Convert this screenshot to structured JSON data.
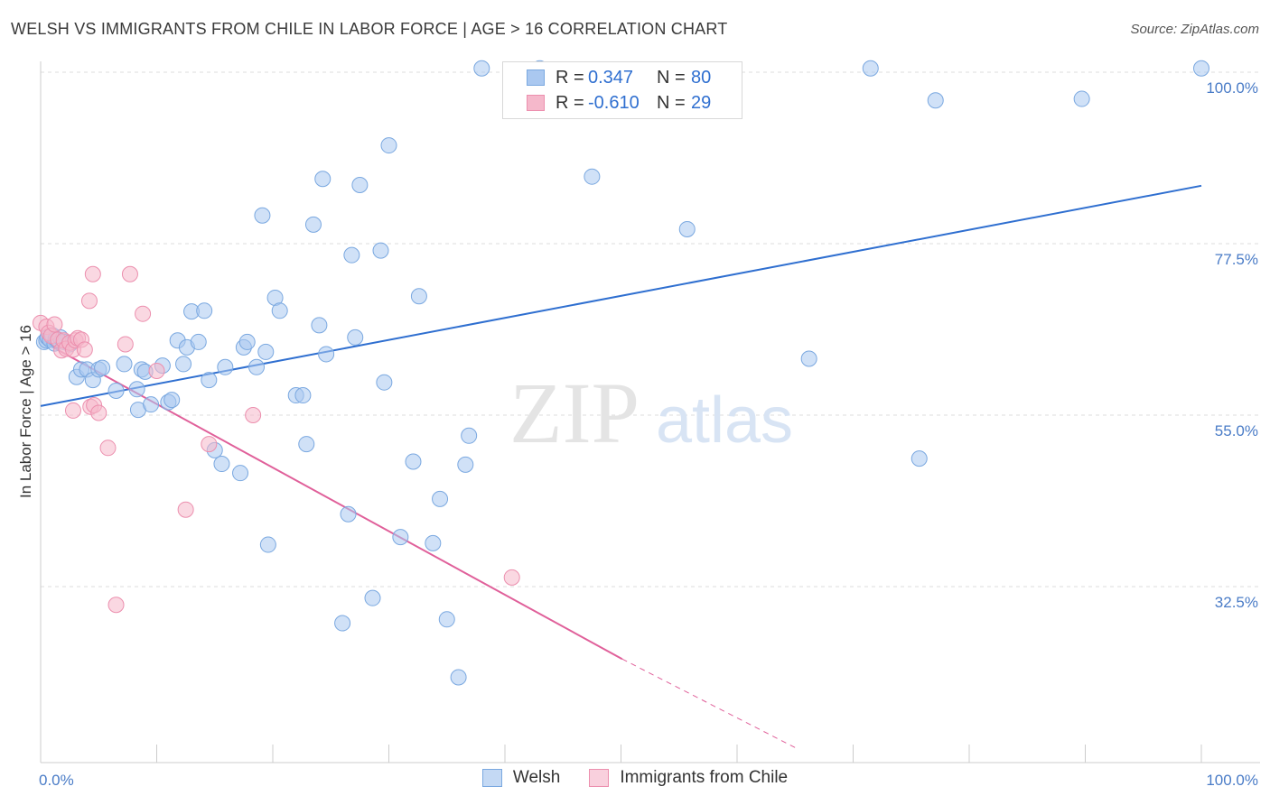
{
  "header": {
    "title": "WELSH VS IMMIGRANTS FROM CHILE IN LABOR FORCE | AGE > 16 CORRELATION CHART",
    "source": "Source: ZipAtlas.com"
  },
  "watermark": {
    "zip": "ZIP",
    "atlas": "atlas"
  },
  "legend_top": {
    "rows": [
      {
        "r_label": "R =",
        "r_value": "0.347",
        "n_label": "N =",
        "n_value": "80",
        "color": "#aac8f0"
      },
      {
        "r_label": "R =",
        "r_value": "-0.610",
        "n_label": "N =",
        "n_value": "29",
        "color": "#f5b8cb"
      }
    ]
  },
  "legend_bottom": [
    {
      "label": "Welsh",
      "color": "#aac8f0"
    },
    {
      "label": "Immigrants from Chile",
      "color": "#f5b8cb"
    }
  ],
  "chart_data": {
    "type": "scatter",
    "title": "WELSH VS IMMIGRANTS FROM CHILE IN LABOR FORCE | AGE > 16 CORRELATION CHART",
    "xlabel": "",
    "ylabel": "In Labor Force | Age > 16",
    "xlim": [
      0,
      100
    ],
    "ylim": [
      12,
      102
    ],
    "x_tick_labels": [
      {
        "value": 0,
        "label": "0.0%"
      },
      {
        "value": 100,
        "label": "100.0%"
      }
    ],
    "y_tick_labels": [
      {
        "value": 100,
        "label": "100.0%"
      },
      {
        "value": 77.5,
        "label": "77.5%"
      },
      {
        "value": 55,
        "label": "55.0%"
      },
      {
        "value": 32.5,
        "label": "32.5%"
      }
    ],
    "grid": "horizontal dashed",
    "series": [
      {
        "name": "Welsh",
        "color": "#aac8f0",
        "stroke": "#7aa8e0",
        "trend_color": "#2f6fd0",
        "trend": {
          "x": [
            0,
            100
          ],
          "y": [
            56.2,
            85.1
          ]
        },
        "points": [
          [
            0.3,
            64.6
          ],
          [
            0.5,
            64.8
          ],
          [
            0.6,
            65.2
          ],
          [
            0.8,
            64.9
          ],
          [
            1.0,
            65.5
          ],
          [
            1.2,
            64.4
          ],
          [
            1.3,
            65.0
          ],
          [
            1.5,
            64.8
          ],
          [
            1.7,
            65.2
          ],
          [
            2.0,
            64.6
          ],
          [
            2.5,
            64.3
          ],
          [
            3.1,
            60.0
          ],
          [
            3.5,
            61.0
          ],
          [
            4.0,
            61.0
          ],
          [
            4.5,
            59.6
          ],
          [
            5.0,
            61.0
          ],
          [
            5.3,
            61.2
          ],
          [
            6.5,
            58.2
          ],
          [
            7.2,
            61.7
          ],
          [
            8.3,
            58.4
          ],
          [
            8.7,
            61.0
          ],
          [
            9.0,
            60.7
          ],
          [
            8.4,
            55.7
          ],
          [
            9.5,
            56.4
          ],
          [
            10.5,
            61.5
          ],
          [
            11.0,
            56.7
          ],
          [
            11.3,
            57.0
          ],
          [
            11.8,
            64.8
          ],
          [
            12.3,
            61.7
          ],
          [
            12.6,
            63.9
          ],
          [
            13.0,
            68.6
          ],
          [
            13.6,
            64.6
          ],
          [
            14.1,
            68.7
          ],
          [
            14.5,
            59.6
          ],
          [
            15.0,
            50.4
          ],
          [
            15.6,
            48.6
          ],
          [
            15.9,
            61.3
          ],
          [
            17.2,
            47.4
          ],
          [
            17.5,
            63.9
          ],
          [
            17.8,
            64.6
          ],
          [
            18.6,
            61.3
          ],
          [
            19.1,
            81.2
          ],
          [
            19.4,
            63.3
          ],
          [
            19.6,
            38.0
          ],
          [
            20.2,
            70.4
          ],
          [
            20.6,
            68.7
          ],
          [
            22.0,
            57.6
          ],
          [
            22.6,
            57.6
          ],
          [
            22.9,
            51.2
          ],
          [
            23.5,
            80.0
          ],
          [
            24.0,
            66.8
          ],
          [
            24.3,
            86.0
          ],
          [
            24.6,
            63.0
          ],
          [
            26.0,
            27.7
          ],
          [
            26.5,
            42.0
          ],
          [
            26.8,
            76.0
          ],
          [
            27.1,
            65.2
          ],
          [
            27.5,
            85.2
          ],
          [
            28.6,
            31.0
          ],
          [
            29.3,
            76.6
          ],
          [
            29.6,
            59.3
          ],
          [
            30.0,
            90.4
          ],
          [
            31.0,
            39.0
          ],
          [
            32.1,
            48.9
          ],
          [
            32.6,
            70.6
          ],
          [
            33.8,
            38.2
          ],
          [
            34.4,
            44.0
          ],
          [
            35.0,
            28.2
          ],
          [
            36.6,
            48.5
          ],
          [
            36.9,
            52.3
          ],
          [
            36.0,
            20.6
          ],
          [
            38.0,
            100.5
          ],
          [
            43.0,
            100.5
          ],
          [
            47.5,
            86.3
          ],
          [
            55.7,
            79.4
          ],
          [
            66.2,
            62.4
          ],
          [
            71.5,
            100.5
          ],
          [
            75.7,
            49.3
          ],
          [
            77.1,
            96.3
          ],
          [
            89.7,
            96.5
          ],
          [
            100.0,
            100.5
          ]
        ]
      },
      {
        "name": "Immigrants from Chile",
        "color": "#f5b8cb",
        "stroke": "#ec8fae",
        "trend_color": "#e0609a",
        "trend": {
          "x": [
            0,
            50.1
          ],
          "y": [
            64.8,
            23.0
          ]
        },
        "trend_dashed": {
          "x": [
            50.1,
            65.1
          ],
          "y": [
            23.0,
            11.3
          ]
        },
        "points": [
          [
            0.0,
            67.1
          ],
          [
            0.5,
            66.6
          ],
          [
            0.7,
            65.8
          ],
          [
            0.9,
            65.4
          ],
          [
            1.2,
            66.9
          ],
          [
            1.5,
            64.9
          ],
          [
            1.8,
            63.5
          ],
          [
            2.0,
            64.8
          ],
          [
            2.2,
            63.7
          ],
          [
            2.5,
            64.5
          ],
          [
            2.8,
            63.6
          ],
          [
            3.0,
            64.8
          ],
          [
            3.2,
            65.1
          ],
          [
            3.5,
            64.9
          ],
          [
            3.8,
            63.6
          ],
          [
            2.8,
            55.6
          ],
          [
            4.3,
            56.1
          ],
          [
            4.6,
            56.3
          ],
          [
            5.0,
            55.3
          ],
          [
            4.2,
            70.0
          ],
          [
            4.5,
            73.5
          ],
          [
            5.8,
            50.7
          ],
          [
            6.5,
            30.1
          ],
          [
            7.3,
            64.3
          ],
          [
            7.7,
            73.5
          ],
          [
            8.8,
            68.3
          ],
          [
            10.0,
            60.8
          ],
          [
            12.5,
            42.6
          ],
          [
            14.5,
            51.2
          ],
          [
            18.3,
            55.0
          ],
          [
            40.6,
            33.7
          ]
        ]
      }
    ]
  }
}
